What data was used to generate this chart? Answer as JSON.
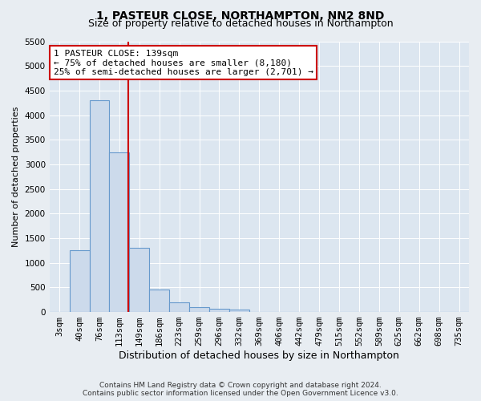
{
  "title": "1, PASTEUR CLOSE, NORTHAMPTON, NN2 8ND",
  "subtitle": "Size of property relative to detached houses in Northampton",
  "xlabel": "Distribution of detached houses by size in Northampton",
  "ylabel": "Number of detached properties",
  "footer_line1": "Contains HM Land Registry data © Crown copyright and database right 2024.",
  "footer_line2": "Contains public sector information licensed under the Open Government Licence v3.0.",
  "bins": [
    "3sqm",
    "40sqm",
    "76sqm",
    "113sqm",
    "149sqm",
    "186sqm",
    "223sqm",
    "259sqm",
    "296sqm",
    "332sqm",
    "369sqm",
    "406sqm",
    "442sqm",
    "479sqm",
    "515sqm",
    "552sqm",
    "589sqm",
    "625sqm",
    "662sqm",
    "698sqm",
    "735sqm"
  ],
  "values": [
    0,
    1250,
    4300,
    3250,
    1300,
    450,
    200,
    100,
    60,
    50,
    0,
    0,
    0,
    0,
    0,
    0,
    0,
    0,
    0,
    0,
    0
  ],
  "bar_color": "#ccdaeb",
  "bar_edge_color": "#6699cc",
  "bar_linewidth": 0.8,
  "vline_color": "#cc0000",
  "vline_pos": 3.45,
  "ylim": [
    0,
    5500
  ],
  "yticks": [
    0,
    500,
    1000,
    1500,
    2000,
    2500,
    3000,
    3500,
    4000,
    4500,
    5000,
    5500
  ],
  "annotation_text": "1 PASTEUR CLOSE: 139sqm\n← 75% of detached houses are smaller (8,180)\n25% of semi-detached houses are larger (2,701) →",
  "annotation_box_facecolor": "#ffffff",
  "annotation_box_edgecolor": "#cc0000",
  "bg_color": "#e8edf2",
  "plot_bg_color": "#dce6f0",
  "grid_color": "#ffffff",
  "title_fontsize": 10,
  "subtitle_fontsize": 9,
  "ylabel_fontsize": 8,
  "xlabel_fontsize": 9,
  "tick_fontsize": 7.5,
  "annotation_fontsize": 8,
  "footer_fontsize": 6.5
}
